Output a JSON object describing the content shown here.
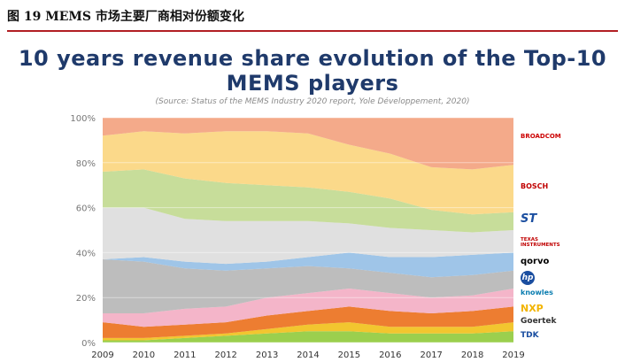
{
  "figure": {
    "caption": "图 19 MEMS 市场主要厂商相对份额变化",
    "title_line1": "10 years revenue share evolution of the Top-10",
    "title_line2": "MEMS players",
    "source": "(Source: Status of the MEMS Industry 2020 report, Yole Développement, 2020)"
  },
  "chart_data": {
    "type": "area",
    "stacked": true,
    "x": [
      "2009",
      "2010",
      "2011",
      "2012",
      "2013",
      "2014",
      "2015",
      "2016",
      "2017",
      "2018",
      "2019"
    ],
    "ylim": [
      0,
      100
    ],
    "yticks": [
      "0%",
      "20%",
      "40%",
      "60%",
      "80%",
      "100%"
    ],
    "grid": true,
    "legend_position": "right",
    "series": [
      {
        "name": "TDK",
        "color": "#9bcf4e",
        "values": [
          1,
          1,
          2,
          3,
          4,
          5,
          5,
          4,
          4,
          4,
          5
        ]
      },
      {
        "name": "Goertek",
        "color": "#f2c62f",
        "values": [
          1,
          1,
          1,
          1,
          2,
          3,
          4,
          3,
          3,
          3,
          4
        ]
      },
      {
        "name": "NXP",
        "color": "#ed7d31",
        "values": [
          7,
          5,
          5,
          5,
          6,
          6,
          7,
          7,
          6,
          7,
          7
        ]
      },
      {
        "name": "Knowles",
        "color": "#f4b5c9",
        "values": [
          4,
          6,
          7,
          7,
          8,
          8,
          8,
          8,
          7,
          7,
          8
        ]
      },
      {
        "name": "HP",
        "color": "#bdbdbd",
        "values": [
          24,
          23,
          18,
          16,
          13,
          12,
          9,
          9,
          9,
          9,
          8
        ]
      },
      {
        "name": "Qorvo",
        "color": "#9fc5e8",
        "values": [
          0,
          2,
          3,
          3,
          3,
          4,
          7,
          7,
          9,
          9,
          8
        ]
      },
      {
        "name": "Texas Instruments",
        "color": "#e0e0e0",
        "values": [
          23,
          22,
          19,
          19,
          18,
          16,
          13,
          13,
          12,
          10,
          10
        ]
      },
      {
        "name": "ST",
        "color": "#c7dd9a",
        "values": [
          16,
          17,
          18,
          17,
          16,
          15,
          14,
          13,
          9,
          8,
          8
        ]
      },
      {
        "name": "Bosch",
        "color": "#fbd98a",
        "values": [
          16,
          17,
          20,
          23,
          24,
          24,
          21,
          20,
          19,
          20,
          21
        ]
      },
      {
        "name": "Broadcom",
        "color": "#f4aa8a",
        "values": [
          8,
          6,
          7,
          6,
          6,
          7,
          12,
          16,
          22,
          23,
          21
        ]
      }
    ],
    "legend_labels": [
      "BROADCOM",
      "BOSCH",
      "ST",
      "TEXAS INSTRUMENTS",
      "qorvo",
      "hp",
      "knowles",
      "NXP",
      "Goertek",
      "TDK"
    ]
  }
}
